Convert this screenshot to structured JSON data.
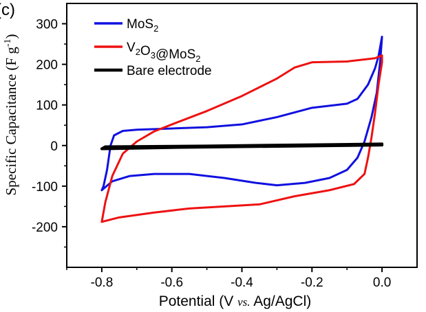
{
  "panel_label": "(c)",
  "chart_data": {
    "type": "line",
    "xlabel_parts": [
      "Potential (V ",
      "vs.",
      " Ag/AgCl)"
    ],
    "ylabel": "Specific Capacitance (F g",
    "ylabel_sup": "-1",
    "ylabel_end": ")",
    "xlim": [
      -0.9,
      0.1
    ],
    "ylim": [
      -300,
      350
    ],
    "x_ticks": [
      -0.8,
      -0.6,
      -0.4,
      -0.2,
      0.0
    ],
    "x_tick_labels": [
      "-0.8",
      "-0.6",
      "-0.4",
      "-0.2",
      "0.0"
    ],
    "y_ticks": [
      -200,
      -100,
      0,
      100,
      200,
      300
    ],
    "y_tick_labels": [
      "-200",
      "-100",
      "0",
      "100",
      "200",
      "300"
    ],
    "legend_position": "top-left",
    "legend": [
      {
        "parts": [
          {
            "t": "MoS"
          },
          {
            "t": "2",
            "sub": true
          }
        ]
      },
      {
        "parts": [
          {
            "t": "V"
          },
          {
            "t": "2",
            "sub": true
          },
          {
            "t": "O"
          },
          {
            "t": "3",
            "sub": true
          },
          {
            "t": "@MoS"
          },
          {
            "t": "2",
            "sub": true
          }
        ]
      },
      {
        "parts": [
          {
            "t": "Bare electrode"
          }
        ]
      }
    ],
    "series": [
      {
        "color": "#1010e0",
        "stroke_width": 3,
        "points": [
          [
            -0.8,
            -110
          ],
          [
            -0.795,
            -100
          ],
          [
            -0.785,
            -60
          ],
          [
            -0.775,
            0
          ],
          [
            -0.765,
            25
          ],
          [
            -0.74,
            36
          ],
          [
            -0.7,
            39
          ],
          [
            -0.6,
            42
          ],
          [
            -0.5,
            45
          ],
          [
            -0.4,
            52
          ],
          [
            -0.3,
            70
          ],
          [
            -0.2,
            93
          ],
          [
            -0.1,
            103
          ],
          [
            -0.07,
            115
          ],
          [
            -0.04,
            150
          ],
          [
            -0.02,
            190
          ],
          [
            -0.01,
            220
          ],
          [
            0.0,
            268
          ],
          [
            -0.005,
            210
          ],
          [
            -0.015,
            130
          ],
          [
            -0.03,
            70
          ],
          [
            -0.05,
            10
          ],
          [
            -0.07,
            -30
          ],
          [
            -0.1,
            -60
          ],
          [
            -0.15,
            -80
          ],
          [
            -0.22,
            -92
          ],
          [
            -0.3,
            -98
          ],
          [
            -0.36,
            -92
          ],
          [
            -0.45,
            -80
          ],
          [
            -0.55,
            -70
          ],
          [
            -0.65,
            -70
          ],
          [
            -0.72,
            -75
          ],
          [
            -0.77,
            -88
          ],
          [
            -0.8,
            -110
          ]
        ]
      },
      {
        "color": "#ee1111",
        "stroke_width": 3,
        "points": [
          [
            -0.8,
            -188
          ],
          [
            -0.79,
            -140
          ],
          [
            -0.77,
            -75
          ],
          [
            -0.74,
            -20
          ],
          [
            -0.7,
            10
          ],
          [
            -0.65,
            35
          ],
          [
            -0.6,
            52
          ],
          [
            -0.5,
            85
          ],
          [
            -0.4,
            122
          ],
          [
            -0.3,
            165
          ],
          [
            -0.25,
            192
          ],
          [
            -0.2,
            205
          ],
          [
            -0.1,
            207
          ],
          [
            -0.05,
            212
          ],
          [
            -0.02,
            215
          ],
          [
            0.0,
            222
          ],
          [
            0.0,
            205
          ],
          [
            -0.01,
            150
          ],
          [
            -0.02,
            80
          ],
          [
            -0.03,
            20
          ],
          [
            -0.04,
            -30
          ],
          [
            -0.05,
            -70
          ],
          [
            -0.08,
            -95
          ],
          [
            -0.15,
            -110
          ],
          [
            -0.25,
            -125
          ],
          [
            -0.35,
            -145
          ],
          [
            -0.45,
            -150
          ],
          [
            -0.55,
            -155
          ],
          [
            -0.65,
            -165
          ],
          [
            -0.75,
            -177
          ],
          [
            -0.8,
            -188
          ]
        ]
      },
      {
        "color": "#000000",
        "stroke_width": 4,
        "points": [
          [
            -0.8,
            -8
          ],
          [
            -0.79,
            -3
          ],
          [
            -0.5,
            -1
          ],
          [
            -0.2,
            2
          ],
          [
            0.0,
            4
          ],
          [
            0.0,
            1
          ],
          [
            -0.3,
            -2
          ],
          [
            -0.6,
            -5
          ],
          [
            -0.79,
            -8
          ],
          [
            -0.8,
            -8
          ]
        ]
      }
    ]
  }
}
